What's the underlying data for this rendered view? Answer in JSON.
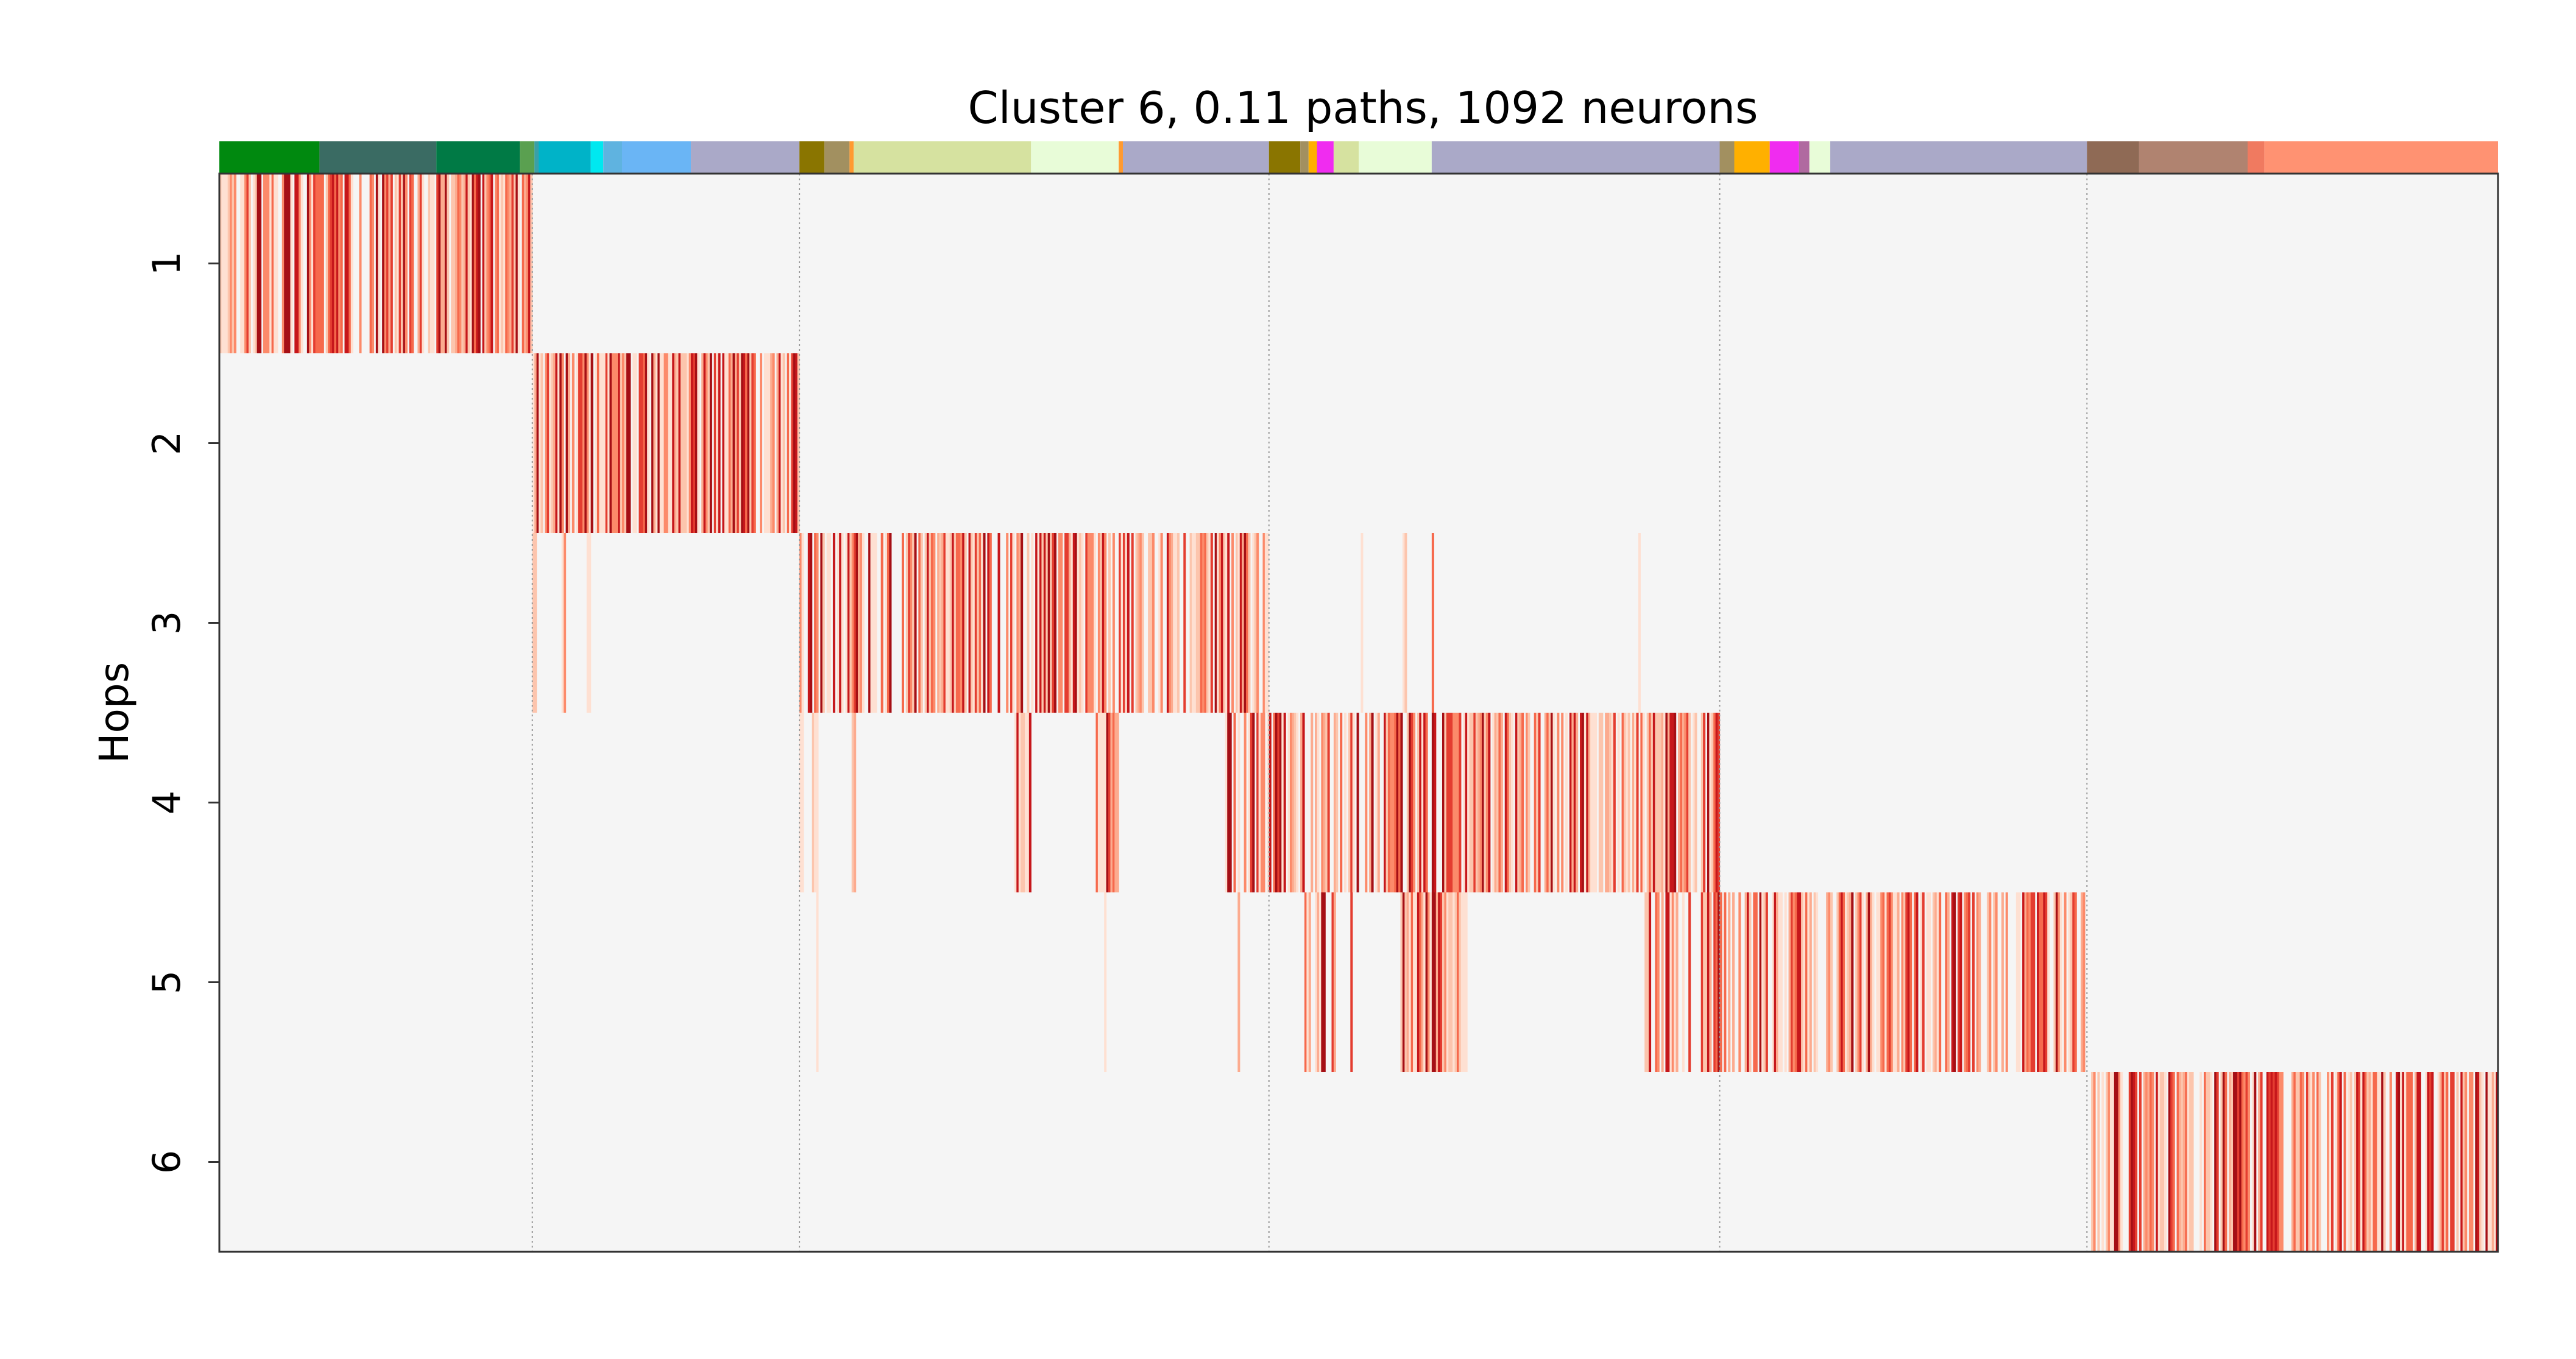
{
  "chart_data": {
    "type": "heatmap",
    "title": "Cluster 6, 0.11 paths, 1092 neurons",
    "ylabel": "Hops",
    "xlabel": "",
    "y_categories": [
      "1",
      "2",
      "3",
      "4",
      "5",
      "6"
    ],
    "n_neurons": 1092,
    "grid": "vertical dotted separators between hop groups",
    "colormap": "Reds",
    "background_color": "#f5f5f5",
    "hop_groups": [
      {
        "hop": 1,
        "start": 0,
        "end": 150
      },
      {
        "hop": 2,
        "start": 150,
        "end": 278
      },
      {
        "hop": 3,
        "start": 278,
        "end": 503
      },
      {
        "hop": 4,
        "start": 503,
        "end": 719
      },
      {
        "hop": 5,
        "start": 719,
        "end": 895
      },
      {
        "hop": 6,
        "start": 895,
        "end": 1092
      }
    ],
    "main_bands": [
      {
        "hop": 1,
        "start": 0,
        "end": 150,
        "density": 0.78
      },
      {
        "hop": 2,
        "start": 150,
        "end": 278,
        "density": 0.84
      },
      {
        "hop": 3,
        "start": 278,
        "end": 503,
        "density": 0.72
      },
      {
        "hop": 4,
        "start": 482,
        "end": 719,
        "density": 0.74
      },
      {
        "hop": 5,
        "start": 680,
        "end": 895,
        "density": 0.68
      },
      {
        "hop": 6,
        "start": 895,
        "end": 1092,
        "density": 0.8
      }
    ],
    "sparse_bands": [
      {
        "hop": 3,
        "start": 150,
        "end": 152
      },
      {
        "hop": 3,
        "start": 164,
        "end": 166
      },
      {
        "hop": 3,
        "start": 176,
        "end": 178
      },
      {
        "hop": 3,
        "start": 547,
        "end": 548
      },
      {
        "hop": 3,
        "start": 567,
        "end": 569
      },
      {
        "hop": 3,
        "start": 581,
        "end": 582
      },
      {
        "hop": 3,
        "start": 680,
        "end": 681
      },
      {
        "hop": 4,
        "start": 278,
        "end": 280
      },
      {
        "hop": 4,
        "start": 284,
        "end": 287
      },
      {
        "hop": 4,
        "start": 303,
        "end": 305
      },
      {
        "hop": 4,
        "start": 381,
        "end": 389
      },
      {
        "hop": 4,
        "start": 420,
        "end": 431
      },
      {
        "hop": 5,
        "start": 286,
        "end": 287
      },
      {
        "hop": 5,
        "start": 424,
        "end": 425
      },
      {
        "hop": 5,
        "start": 488,
        "end": 489
      },
      {
        "hop": 5,
        "start": 520,
        "end": 523
      },
      {
        "hop": 5,
        "start": 525,
        "end": 530
      },
      {
        "hop": 5,
        "start": 533,
        "end": 535
      },
      {
        "hop": 5,
        "start": 542,
        "end": 543
      },
      {
        "hop": 5,
        "start": 566,
        "end": 598
      }
    ],
    "category_bar": [
      {
        "start": 0,
        "end": 48,
        "color": "#00890f"
      },
      {
        "start": 48,
        "end": 104,
        "color": "#3a6b63"
      },
      {
        "start": 104,
        "end": 144,
        "color": "#007a45"
      },
      {
        "start": 144,
        "end": 151,
        "color": "#5aa050"
      },
      {
        "start": 151,
        "end": 153,
        "color": "#3aa0a8"
      },
      {
        "start": 153,
        "end": 178,
        "color": "#00b3c8"
      },
      {
        "start": 178,
        "end": 184,
        "color": "#00e8f0"
      },
      {
        "start": 184,
        "end": 193,
        "color": "#5fb3e0"
      },
      {
        "start": 193,
        "end": 226,
        "color": "#6ab5f5"
      },
      {
        "start": 226,
        "end": 278,
        "color": "#aaa9c8"
      },
      {
        "start": 278,
        "end": 290,
        "color": "#8a7500"
      },
      {
        "start": 290,
        "end": 302,
        "color": "#a29060"
      },
      {
        "start": 302,
        "end": 304,
        "color": "#ff9a30"
      },
      {
        "start": 304,
        "end": 389,
        "color": "#d6e2a0"
      },
      {
        "start": 389,
        "end": 431,
        "color": "#e8fcd8"
      },
      {
        "start": 431,
        "end": 433,
        "color": "#ff9a30"
      },
      {
        "start": 433,
        "end": 503,
        "color": "#aaa9c8"
      },
      {
        "start": 503,
        "end": 518,
        "color": "#8a7500"
      },
      {
        "start": 518,
        "end": 522,
        "color": "#a29060"
      },
      {
        "start": 522,
        "end": 526,
        "color": "#ffb000"
      },
      {
        "start": 526,
        "end": 534,
        "color": "#f02cf0"
      },
      {
        "start": 534,
        "end": 546,
        "color": "#d6e2a0"
      },
      {
        "start": 546,
        "end": 581,
        "color": "#e8fcd8"
      },
      {
        "start": 581,
        "end": 719,
        "color": "#aaa9c8"
      },
      {
        "start": 719,
        "end": 726,
        "color": "#a29060"
      },
      {
        "start": 726,
        "end": 743,
        "color": "#ffb000"
      },
      {
        "start": 743,
        "end": 757,
        "color": "#f02cf0"
      },
      {
        "start": 757,
        "end": 762,
        "color": "#b06aa0"
      },
      {
        "start": 762,
        "end": 772,
        "color": "#e8fcd8"
      },
      {
        "start": 772,
        "end": 895,
        "color": "#aaa9c8"
      },
      {
        "start": 895,
        "end": 920,
        "color": "#8f6a55"
      },
      {
        "start": 920,
        "end": 972,
        "color": "#b08370"
      },
      {
        "start": 972,
        "end": 980,
        "color": "#f07a60"
      },
      {
        "start": 980,
        "end": 1092,
        "color": "#ff9272"
      }
    ]
  }
}
